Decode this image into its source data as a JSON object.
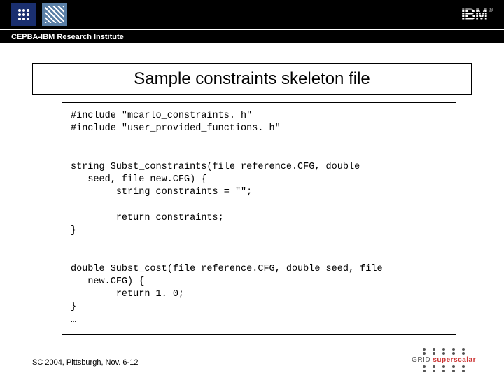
{
  "header": {
    "sub_band": "CEPBA-IBM Research Institute",
    "ibm": "IBM"
  },
  "title": "Sample constraints skeleton file",
  "code": "#include \"mcarlo_constraints. h\"\n#include \"user_provided_functions. h\"\n\n\nstring Subst_constraints(file reference.CFG, double\n   seed, file new.CFG) {\n        string constraints = \"\";\n\n        return constraints;\n}\n\n\ndouble Subst_cost(file reference.CFG, double seed, file\n   new.CFG) {\n        return 1. 0;\n}\n…",
  "footer": "SC 2004, Pittsburgh, Nov. 6-12",
  "grid_label_prefix": "GRID ",
  "grid_label_accent": "superscalar"
}
